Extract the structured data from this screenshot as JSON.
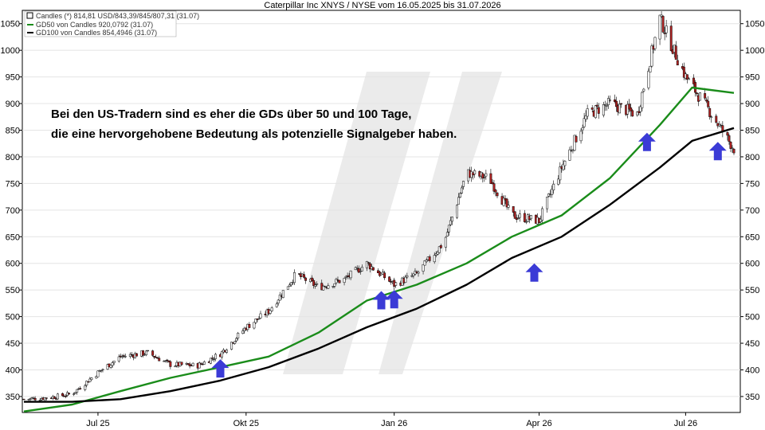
{
  "title": "Caterpillar Inc XNYS / NYSE vom 16.05.2025 bis 31.07.2026",
  "legend": [
    {
      "label": "Candles (*) 814,81 USD/843,39/845/807,31 (31.07)",
      "color": "#ffffff",
      "kind": "box"
    },
    {
      "label": "GD50 von Candles 920,0792 (31.07)",
      "color": "#1a8c1a",
      "kind": "line"
    },
    {
      "label": "GD100 von Candles 854,4946 (31.07)",
      "color": "#000000",
      "kind": "line"
    }
  ],
  "annotation": {
    "line1": "Bei den US-Tradern sind es eher die GDs über 50 und 100 Tage,",
    "line2": "die eine hervorgehobene Bedeutung als potenzielle Signalgeber haben."
  },
  "colors": {
    "up": "#ffffff",
    "down": "#b22222",
    "gd50": "#1a8c1a",
    "gd100": "#000000",
    "arrow": "#3b3bd6",
    "watermark": "#ebebeb"
  },
  "chart_data": {
    "type": "line",
    "ylim": [
      320,
      1075
    ],
    "y_ticks": [
      "350",
      "400",
      "450",
      "500",
      "550",
      "600",
      "650",
      "700",
      "750",
      "800",
      "850",
      "900",
      "950",
      "1000",
      "1050"
    ],
    "x_ticks": [
      "Jul 25",
      "Okt 25",
      "Jan 26",
      "Apr 26",
      "Jul 26"
    ],
    "x_range": [
      "2025-05-16",
      "2026-07-31"
    ],
    "series": [
      {
        "name": "Candles",
        "type": "candlestick",
        "x": [
          "2025-05-16",
          "2025-06-01",
          "2025-06-15",
          "2025-07-01",
          "2025-07-15",
          "2025-08-01",
          "2025-08-15",
          "2025-09-01",
          "2025-09-15",
          "2025-10-01",
          "2025-10-15",
          "2025-11-01",
          "2025-11-15",
          "2025-12-01",
          "2025-12-15",
          "2026-01-01",
          "2026-01-15",
          "2026-02-01",
          "2026-02-15",
          "2026-03-01",
          "2026-03-15",
          "2026-04-01",
          "2026-04-15",
          "2026-05-01",
          "2026-05-15",
          "2026-06-01",
          "2026-06-15",
          "2026-07-01",
          "2026-07-15",
          "2026-07-31"
        ],
        "close": [
          345,
          348,
          355,
          395,
          425,
          432,
          410,
          408,
          430,
          480,
          510,
          580,
          555,
          570,
          600,
          560,
          580,
          640,
          770,
          760,
          690,
          680,
          780,
          880,
          900,
          880,
          1060,
          950,
          890,
          815
        ]
      },
      {
        "name": "GD50 von Candles",
        "type": "line",
        "x": [
          "2025-05-16",
          "2025-06-15",
          "2025-07-15",
          "2025-08-15",
          "2025-09-15",
          "2025-10-15",
          "2025-11-15",
          "2025-12-15",
          "2026-01-15",
          "2026-02-15",
          "2026-03-15",
          "2026-04-15",
          "2026-05-15",
          "2026-06-15",
          "2026-07-05",
          "2026-07-31"
        ],
        "y": [
          322,
          335,
          360,
          385,
          405,
          425,
          470,
          530,
          560,
          600,
          650,
          690,
          760,
          860,
          930,
          920
        ]
      },
      {
        "name": "GD100 von Candles",
        "type": "line",
        "x": [
          "2025-05-16",
          "2025-06-15",
          "2025-07-15",
          "2025-08-15",
          "2025-09-15",
          "2025-10-15",
          "2025-11-15",
          "2025-12-15",
          "2026-01-15",
          "2026-02-15",
          "2026-03-15",
          "2026-04-15",
          "2026-05-15",
          "2026-06-15",
          "2026-07-05",
          "2026-07-31"
        ],
        "y": [
          340,
          340,
          345,
          360,
          380,
          405,
          440,
          480,
          515,
          560,
          610,
          650,
          710,
          780,
          830,
          854
        ]
      }
    ],
    "arrows_x": [
      "2025-09-15",
      "2025-12-24",
      "2026-01-01",
      "2026-03-29",
      "2026-06-07",
      "2026-07-21"
    ],
    "arrows_y": [
      420,
      548,
      550,
      600,
      845,
      828
    ]
  }
}
